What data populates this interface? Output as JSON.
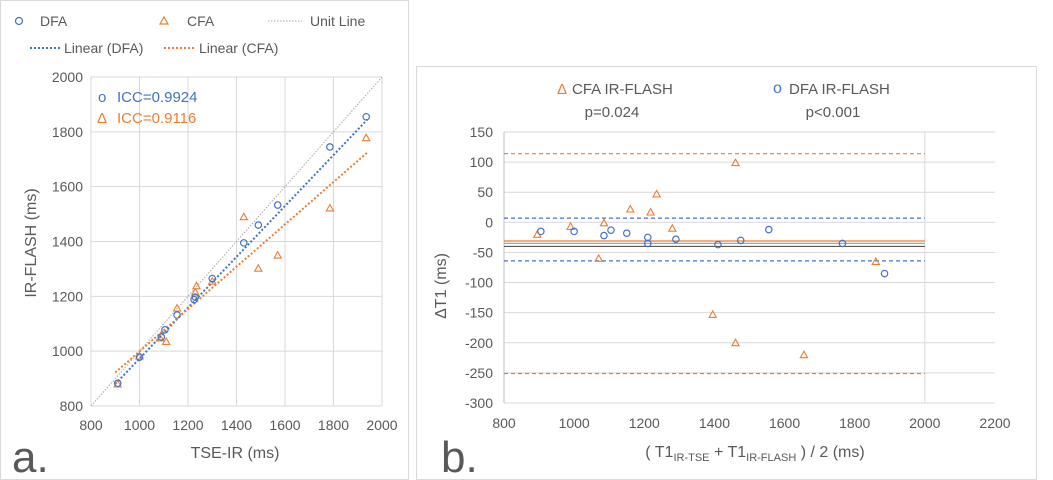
{
  "chart_data": [
    {
      "type": "scatter",
      "panel_label": "a.",
      "xlabel": "TSE-IR (ms)",
      "ylabel": "IR-FLASH (ms)",
      "xlim": [
        800,
        2000
      ],
      "ylim": [
        800,
        2000
      ],
      "xticks": [
        800,
        1000,
        1200,
        1400,
        1600,
        1800,
        2000
      ],
      "yticks": [
        800,
        1000,
        1200,
        1400,
        1600,
        1800,
        2000
      ],
      "grid": true,
      "legend": {
        "position": "top",
        "dfa": "DFA",
        "cfa": "CFA",
        "unit": "Unit Line",
        "lin_dfa": "Linear (DFA)",
        "lin_cfa": "Linear (CFA)"
      },
      "annotations": {
        "icc_dfa": "ICC=0.9924",
        "icc_cfa": "ICC=0.9116",
        "marker_dfa": "o",
        "marker_cfa": "Δ"
      },
      "colors": {
        "dfa": "#4472C4",
        "cfa": "#ED7D31",
        "unit": "#A6A6A6"
      },
      "series": [
        {
          "name": "DFA",
          "marker": "circle",
          "points": [
            [
              910,
              883
            ],
            [
              1000,
              978
            ],
            [
              1090,
              1052
            ],
            [
              1105,
              1078
            ],
            [
              1155,
              1132
            ],
            [
              1225,
              1188
            ],
            [
              1230,
              1197
            ],
            [
              1300,
              1265
            ],
            [
              1430,
              1395
            ],
            [
              1490,
              1460
            ],
            [
              1570,
              1533
            ],
            [
              1785,
              1745
            ],
            [
              1935,
              1855
            ]
          ]
        },
        {
          "name": "CFA",
          "marker": "triangle",
          "points": [
            [
              910,
              880
            ],
            [
              1000,
              982
            ],
            [
              1085,
              1048
            ],
            [
              1110,
              1035
            ],
            [
              1155,
              1157
            ],
            [
              1230,
              1215
            ],
            [
              1235,
              1238
            ],
            [
              1300,
              1255
            ],
            [
              1430,
              1490
            ],
            [
              1490,
              1302
            ],
            [
              1570,
              1350
            ],
            [
              1785,
              1522
            ],
            [
              1935,
              1778
            ]
          ]
        }
      ],
      "fit_lines": [
        {
          "name": "Linear (DFA)",
          "from": [
            900,
            880
          ],
          "to": [
            1940,
            1845
          ]
        },
        {
          "name": "Linear (CFA)",
          "from": [
            900,
            922
          ],
          "to": [
            1940,
            1725
          ]
        }
      ],
      "unit_line": {
        "from": [
          800,
          800
        ],
        "to": [
          2000,
          2000
        ]
      }
    },
    {
      "type": "scatter",
      "panel_label": "b.",
      "xlabel_main": "( T1",
      "xlabel_sub1": "IR-TSE",
      "xlabel_plus": " + T1",
      "xlabel_sub2": "IR-FLASH",
      "xlabel_tail": " ) / 2 (ms)",
      "ylabel": "ΔT1 (ms)",
      "xlim": [
        800,
        2200
      ],
      "ylim": [
        -300,
        150
      ],
      "xticks": [
        800,
        1000,
        1200,
        1400,
        1600,
        1800,
        2000,
        2200
      ],
      "yticks": [
        150,
        100,
        50,
        0,
        -50,
        -100,
        -150,
        -200,
        -250,
        -300
      ],
      "grid": true,
      "legend": {
        "position": "top",
        "cfa": "CFA IR-FLASH",
        "cfa_marker": "Δ",
        "cfa_p": "p=0.024",
        "dfa": "DFA IR-FLASH",
        "dfa_marker": "o",
        "dfa_p": "p<0.001"
      },
      "colors": {
        "dfa": "#4472C4",
        "cfa": "#ED7D31",
        "mean": "#A6A6A6"
      },
      "series": [
        {
          "name": "DFA IR-FLASH",
          "marker": "circle",
          "points": [
            [
              905,
              -15
            ],
            [
              1000,
              -15
            ],
            [
              1085,
              -22
            ],
            [
              1105,
              -13
            ],
            [
              1150,
              -18
            ],
            [
              1210,
              -25
            ],
            [
              1210,
              -35
            ],
            [
              1290,
              -28
            ],
            [
              1410,
              -37
            ],
            [
              1475,
              -30
            ],
            [
              1555,
              -12
            ],
            [
              1765,
              -35
            ],
            [
              1885,
              -85
            ]
          ]
        },
        {
          "name": "CFA IR-FLASH",
          "marker": "triangle",
          "points": [
            [
              895,
              -20
            ],
            [
              990,
              -7
            ],
            [
              1070,
              -60
            ],
            [
              1085,
              -1
            ],
            [
              1160,
              22
            ],
            [
              1218,
              17
            ],
            [
              1235,
              47
            ],
            [
              1280,
              -10
            ],
            [
              1395,
              -153
            ],
            [
              1460,
              99
            ],
            [
              1460,
              -200
            ],
            [
              1655,
              -220
            ],
            [
              1860,
              -65
            ]
          ]
        }
      ],
      "lines": {
        "dfa_mean": -35,
        "dfa_upper": 7,
        "dfa_lower": -64,
        "cfa_mean": -31,
        "cfa_upper": 114,
        "cfa_lower": -251,
        "x_range": [
          800,
          2000
        ]
      }
    }
  ]
}
